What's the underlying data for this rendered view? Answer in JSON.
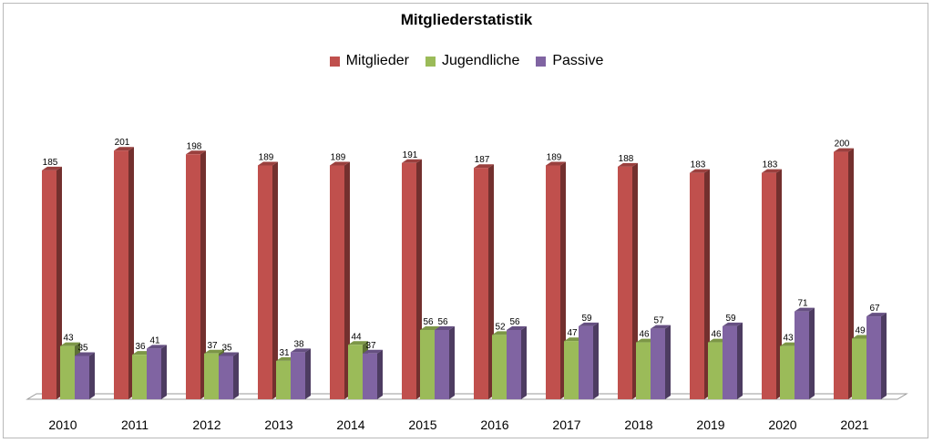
{
  "chart_data": {
    "type": "bar",
    "title": "Mitgliederstatistik",
    "categories": [
      "2010",
      "2011",
      "2012",
      "2013",
      "2014",
      "2015",
      "2016",
      "2017",
      "2018",
      "2019",
      "2020",
      "2021"
    ],
    "series": [
      {
        "name": "Mitglieder",
        "color": "#c0504d",
        "values": [
          185,
          201,
          198,
          189,
          189,
          191,
          187,
          189,
          188,
          183,
          183,
          200
        ]
      },
      {
        "name": "Jugendliche",
        "color": "#9bbb59",
        "values": [
          43,
          36,
          37,
          31,
          44,
          56,
          52,
          47,
          46,
          46,
          43,
          49
        ]
      },
      {
        "name": "Passive",
        "color": "#8064a2",
        "values": [
          35,
          41,
          35,
          38,
          37,
          56,
          56,
          59,
          57,
          59,
          71,
          67
        ]
      }
    ],
    "ylim": [
      0,
      210
    ],
    "legend_position": "top",
    "grid": false,
    "style": "3d-columns"
  }
}
